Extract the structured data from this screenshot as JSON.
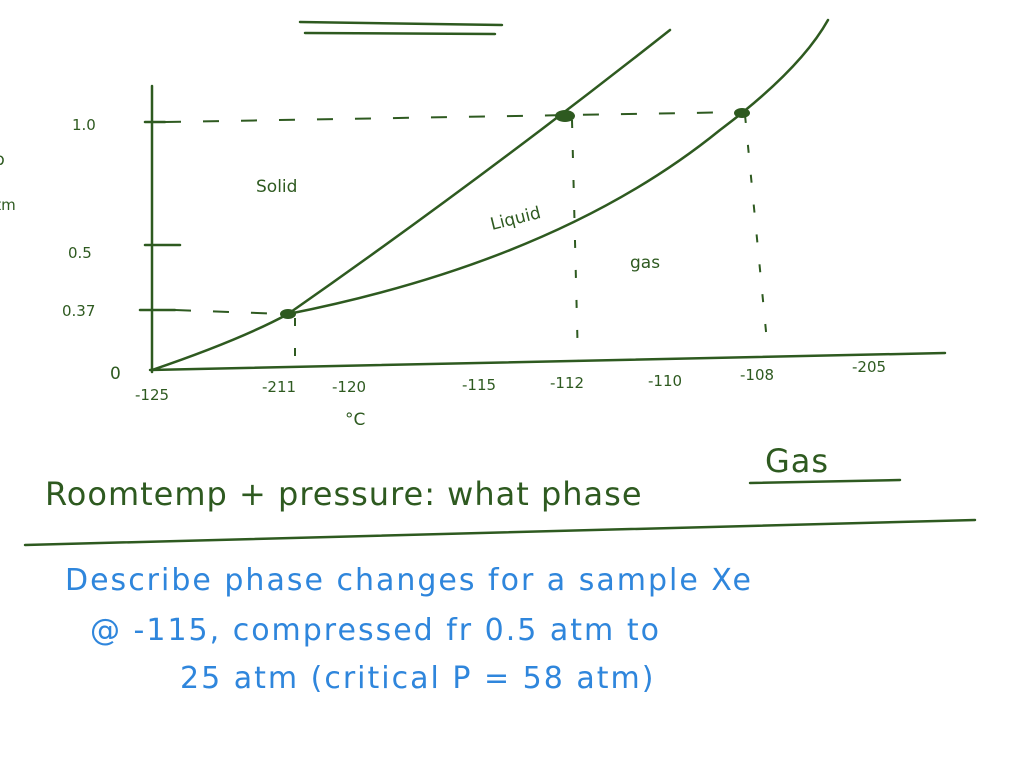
{
  "diagram": {
    "side_label": {
      "top": "p",
      "bottom": "atm"
    },
    "y_labels": [
      "1.0",
      "0.5",
      "0.37",
      "0"
    ],
    "x_labels": [
      "-125",
      "-211",
      "-120",
      "-115",
      "-112",
      "-110",
      "-108",
      "-205"
    ],
    "x_unit": "°C",
    "regions": {
      "solid": "Solid",
      "liquid": "Liquid",
      "gas": "gas"
    },
    "question": {
      "text": "Roomtemp + pressure: what phase",
      "answer": "Gas"
    },
    "problem": [
      "Describe phase changes for a sample Xe",
      "@ -115, compressed fr 0.5 atm to",
      "25 atm   (critical P = 58 atm)"
    ]
  }
}
